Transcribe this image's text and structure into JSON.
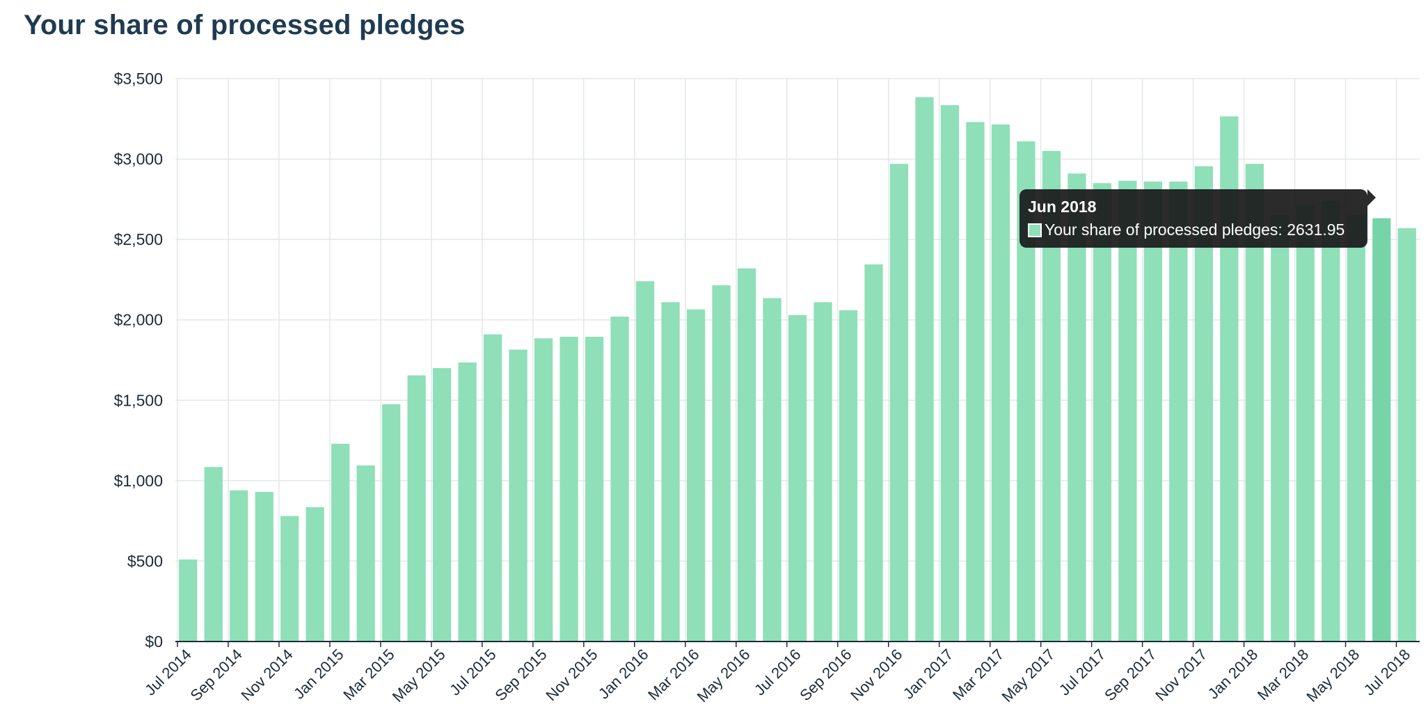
{
  "title": "Your share of processed pledges",
  "tooltip": {
    "title": "Jun 2018",
    "label": "Your share of processed pledges: 2631.95",
    "swatch_color": "#8fdfb9"
  },
  "chart_data": {
    "type": "bar",
    "title": "Your share of processed pledges",
    "xlabel": "",
    "ylabel": "",
    "ylim": [
      0,
      3500
    ],
    "yticks": [
      "$0",
      "$500",
      "$1,000",
      "$1,500",
      "$2,000",
      "$2,500",
      "$3,000",
      "$3,500"
    ],
    "ytick_values": [
      0,
      500,
      1000,
      1500,
      2000,
      2500,
      3000,
      3500
    ],
    "grid": true,
    "bar_color": "#8fdfb9",
    "highlight_color": "#76d4a8",
    "highlight_category": "Jun 2018",
    "categories": [
      "Jul 2014",
      "Aug 2014",
      "Sep 2014",
      "Oct 2014",
      "Nov 2014",
      "Dec 2014",
      "Jan 2015",
      "Feb 2015",
      "Mar 2015",
      "Apr 2015",
      "May 2015",
      "Jun 2015",
      "Jul 2015",
      "Aug 2015",
      "Sep 2015",
      "Oct 2015",
      "Nov 2015",
      "Dec 2015",
      "Jan 2016",
      "Feb 2016",
      "Mar 2016",
      "Apr 2016",
      "May 2016",
      "Jun 2016",
      "Jul 2016",
      "Aug 2016",
      "Sep 2016",
      "Oct 2016",
      "Nov 2016",
      "Dec 2016",
      "Jan 2017",
      "Feb 2017",
      "Mar 2017",
      "Apr 2017",
      "May 2017",
      "Jun 2017",
      "Jul 2017",
      "Aug 2017",
      "Sep 2017",
      "Oct 2017",
      "Nov 2017",
      "Dec 2017",
      "Jan 2018",
      "Feb 2018",
      "Mar 2018",
      "Apr 2018",
      "May 2018",
      "Jun 2018",
      "Jul 2018"
    ],
    "x_tick_labels": [
      "Jul 2014",
      "Sep 2014",
      "Nov 2014",
      "Jan 2015",
      "Mar 2015",
      "May 2015",
      "Jul 2015",
      "Sep 2015",
      "Nov 2015",
      "Jan 2016",
      "Mar 2016",
      "May 2016",
      "Jul 2016",
      "Sep 2016",
      "Nov 2016",
      "Jan 2017",
      "Mar 2017",
      "May 2017",
      "Jul 2017",
      "Sep 2017",
      "Nov 2017",
      "Jan 2018",
      "Mar 2018",
      "May 2018",
      "Jul 2018"
    ],
    "series": [
      {
        "values": [
          510,
          1085,
          940,
          930,
          780,
          835,
          1230,
          1095,
          1475,
          1655,
          1700,
          1735,
          1910,
          1815,
          1885,
          1895,
          1895,
          2020,
          2240,
          2110,
          2065,
          2215,
          2320,
          2135,
          2030,
          2110,
          2060,
          2345,
          2970,
          3385,
          3335,
          3230,
          3215,
          3110,
          3050,
          2910,
          2850,
          2865,
          2860,
          2860,
          2955,
          3265,
          2970,
          2650,
          2710,
          2740,
          2650,
          2631.95,
          2570
        ]
      }
    ]
  }
}
